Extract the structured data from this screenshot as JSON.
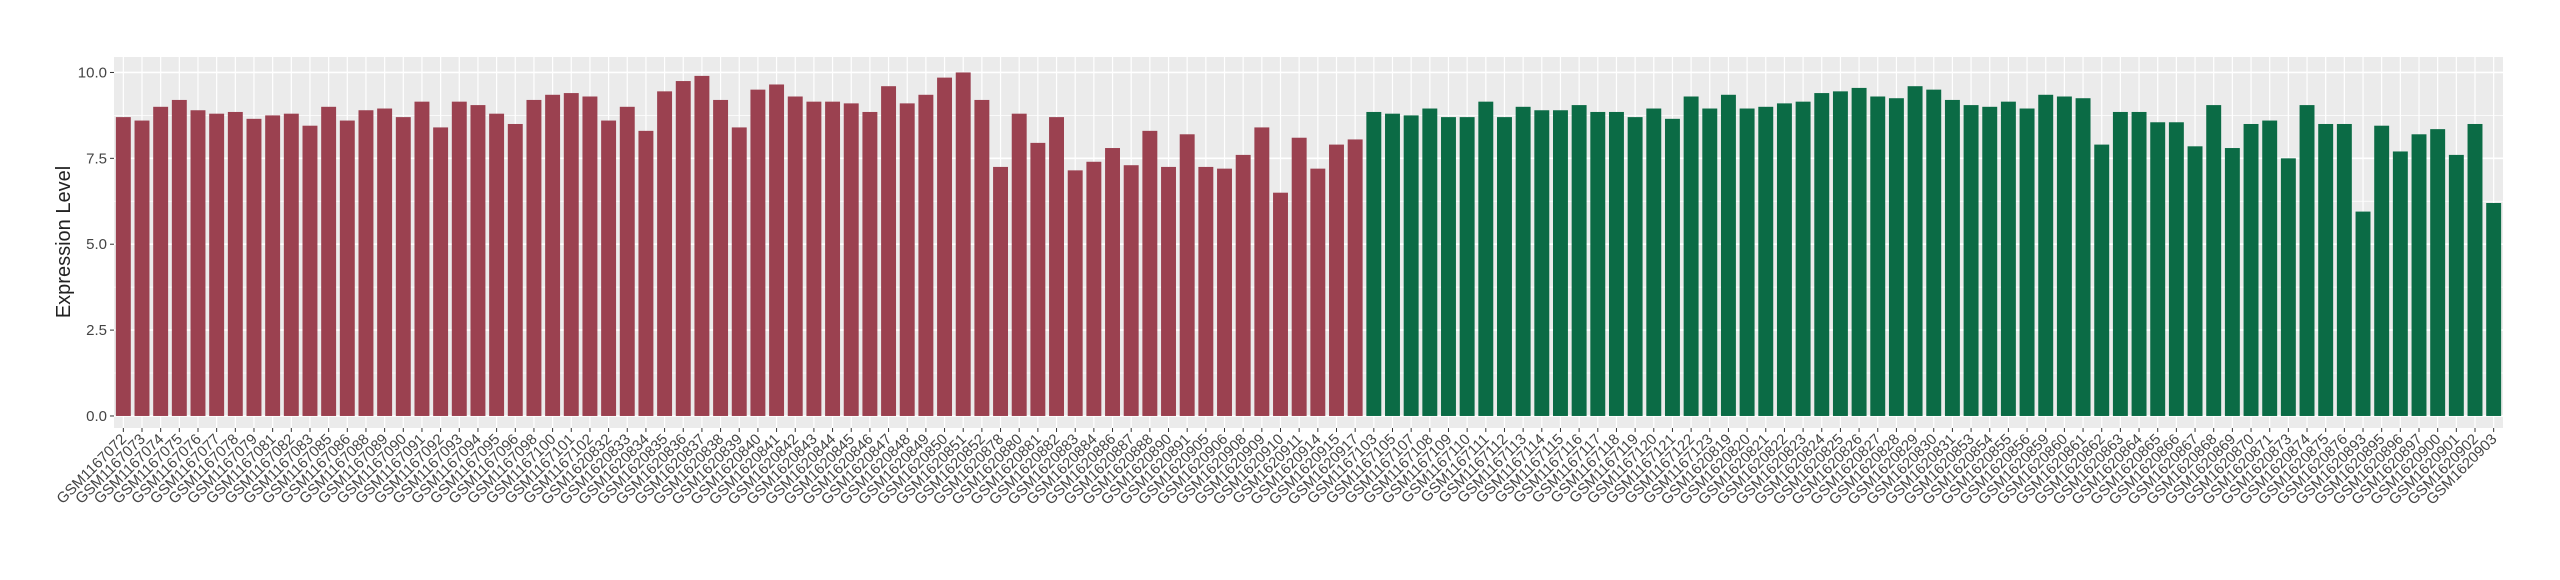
{
  "chart_data": {
    "type": "bar",
    "y_label": "Expression Level",
    "categories": [
      "GSM1167072",
      "GSM1167073",
      "GSM1167074",
      "GSM1167075",
      "GSM1167076",
      "GSM1167077",
      "GSM1167078",
      "GSM1167079",
      "GSM1167081",
      "GSM1167082",
      "GSM1167083",
      "GSM1167085",
      "GSM1167086",
      "GSM1167088",
      "GSM1167089",
      "GSM1167090",
      "GSM1167091",
      "GSM1167092",
      "GSM1167093",
      "GSM1167094",
      "GSM1167095",
      "GSM1167096",
      "GSM1167098",
      "GSM1167100",
      "GSM1167101",
      "GSM1167102",
      "GSM1620832",
      "GSM1620833",
      "GSM1620834",
      "GSM1620835",
      "GSM1620836",
      "GSM1620837",
      "GSM1620838",
      "GSM1620839",
      "GSM1620840",
      "GSM1620841",
      "GSM1620842",
      "GSM1620843",
      "GSM1620844",
      "GSM1620845",
      "GSM1620846",
      "GSM1620847",
      "GSM1620848",
      "GSM1620849",
      "GSM1620850",
      "GSM1620851",
      "GSM1620852",
      "GSM1620878",
      "GSM1620880",
      "GSM1620881",
      "GSM1620882",
      "GSM1620883",
      "GSM1620884",
      "GSM1620886",
      "GSM1620887",
      "GSM1620888",
      "GSM1620890",
      "GSM1620891",
      "GSM1620905",
      "GSM1620906",
      "GSM1620908",
      "GSM1620909",
      "GSM1620910",
      "GSM1620911",
      "GSM1620914",
      "GSM1620915",
      "GSM1620917",
      "GSM1167103",
      "GSM1167105",
      "GSM1167107",
      "GSM1167108",
      "GSM1167109",
      "GSM1167110",
      "GSM1167111",
      "GSM1167112",
      "GSM1167113",
      "GSM1167114",
      "GSM1167115",
      "GSM1167116",
      "GSM1167117",
      "GSM1167118",
      "GSM1167119",
      "GSM1167120",
      "GSM1167121",
      "GSM1167122",
      "GSM1167123",
      "GSM1620819",
      "GSM1620820",
      "GSM1620821",
      "GSM1620822",
      "GSM1620823",
      "GSM1620824",
      "GSM1620825",
      "GSM1620826",
      "GSM1620827",
      "GSM1620828",
      "GSM1620829",
      "GSM1620830",
      "GSM1620831",
      "GSM1620853",
      "GSM1620854",
      "GSM1620855",
      "GSM1620856",
      "GSM1620859",
      "GSM1620860",
      "GSM1620861",
      "GSM1620862",
      "GSM1620863",
      "GSM1620864",
      "GSM1620865",
      "GSM1620866",
      "GSM1620867",
      "GSM1620868",
      "GSM1620869",
      "GSM1620870",
      "GSM1620871",
      "GSM1620873",
      "GSM1620874",
      "GSM1620875",
      "GSM1620876",
      "GSM1620893",
      "GSM1620895",
      "GSM1620896",
      "GSM1620897",
      "GSM1620900",
      "GSM1620901",
      "GSM1620902",
      "GSM1620903"
    ],
    "values": [
      8.7,
      8.6,
      9.0,
      9.2,
      8.9,
      8.8,
      8.85,
      8.65,
      8.75,
      8.8,
      8.45,
      9.0,
      8.6,
      8.9,
      8.95,
      8.7,
      9.15,
      8.4,
      9.15,
      9.05,
      8.8,
      8.5,
      9.2,
      9.35,
      9.4,
      9.3,
      8.6,
      9.0,
      8.3,
      9.45,
      9.75,
      9.9,
      9.2,
      8.4,
      9.5,
      9.65,
      9.3,
      9.15,
      9.15,
      9.1,
      8.85,
      9.6,
      9.1,
      9.35,
      9.85,
      10.0,
      9.2,
      7.25,
      8.8,
      7.95,
      8.7,
      7.15,
      7.4,
      7.8,
      7.3,
      8.3,
      7.25,
      8.2,
      7.25,
      7.2,
      7.6,
      8.4,
      6.5,
      8.1,
      7.2,
      7.9,
      8.05,
      8.85,
      8.8,
      8.75,
      8.95,
      8.7,
      8.7,
      9.15,
      8.7,
      9.0,
      8.9,
      8.9,
      9.05,
      8.85,
      8.85,
      8.7,
      8.95,
      8.65,
      9.3,
      8.95,
      9.35,
      8.95,
      9.0,
      9.1,
      9.15,
      9.4,
      9.45,
      9.55,
      9.3,
      9.25,
      9.6,
      9.5,
      9.2,
      9.05,
      9.0,
      9.15,
      8.95,
      9.35,
      9.3,
      9.25,
      7.9,
      8.85,
      8.85,
      8.55,
      8.55,
      7.85,
      9.05,
      7.8,
      8.5,
      8.6,
      7.5,
      9.05,
      8.5,
      8.5,
      5.95,
      8.45,
      7.7,
      8.2,
      8.35,
      7.6,
      8.5,
      6.2
    ],
    "colors": [
      "#9b4150",
      "#9b4150",
      "#9b4150",
      "#9b4150",
      "#9b4150",
      "#9b4150",
      "#9b4150",
      "#9b4150",
      "#9b4150",
      "#9b4150",
      "#9b4150",
      "#9b4150",
      "#9b4150",
      "#9b4150",
      "#9b4150",
      "#9b4150",
      "#9b4150",
      "#9b4150",
      "#9b4150",
      "#9b4150",
      "#9b4150",
      "#9b4150",
      "#9b4150",
      "#9b4150",
      "#9b4150",
      "#9b4150",
      "#9b4150",
      "#9b4150",
      "#9b4150",
      "#9b4150",
      "#9b4150",
      "#9b4150",
      "#9b4150",
      "#9b4150",
      "#9b4150",
      "#9b4150",
      "#9b4150",
      "#9b4150",
      "#9b4150",
      "#9b4150",
      "#9b4150",
      "#9b4150",
      "#9b4150",
      "#9b4150",
      "#9b4150",
      "#9b4150",
      "#9b4150",
      "#9b4150",
      "#9b4150",
      "#9b4150",
      "#9b4150",
      "#9b4150",
      "#9b4150",
      "#9b4150",
      "#9b4150",
      "#9b4150",
      "#9b4150",
      "#9b4150",
      "#9b4150",
      "#9b4150",
      "#9b4150",
      "#9b4150",
      "#9b4150",
      "#9b4150",
      "#9b4150",
      "#9b4150",
      "#9b4150",
      "#0b6b45",
      "#0b6b45",
      "#0b6b45",
      "#0b6b45",
      "#0b6b45",
      "#0b6b45",
      "#0b6b45",
      "#0b6b45",
      "#0b6b45",
      "#0b6b45",
      "#0b6b45",
      "#0b6b45",
      "#0b6b45",
      "#0b6b45",
      "#0b6b45",
      "#0b6b45",
      "#0b6b45",
      "#0b6b45",
      "#0b6b45",
      "#0b6b45",
      "#0b6b45",
      "#0b6b45",
      "#0b6b45",
      "#0b6b45",
      "#0b6b45",
      "#0b6b45",
      "#0b6b45",
      "#0b6b45",
      "#0b6b45",
      "#0b6b45",
      "#0b6b45",
      "#0b6b45",
      "#0b6b45",
      "#0b6b45",
      "#0b6b45",
      "#0b6b45",
      "#0b6b45",
      "#0b6b45",
      "#0b6b45",
      "#0b6b45",
      "#0b6b45",
      "#0b6b45",
      "#0b6b45",
      "#0b6b45",
      "#0b6b45",
      "#0b6b45",
      "#0b6b45",
      "#0b6b45",
      "#0b6b45",
      "#0b6b45",
      "#0b6b45",
      "#0b6b45",
      "#0b6b45",
      "#0b6b45",
      "#0b6b45",
      "#0b6b45",
      "#0b6b45",
      "#0b6b45",
      "#0b6b45",
      "#0b6b45",
      "#0b6b45"
    ],
    "ylim": [
      -0.35,
      10.45
    ],
    "yticks": [
      {
        "value": 0,
        "label": "0.0"
      },
      {
        "value": 2.5,
        "label": "2.5"
      },
      {
        "value": 5,
        "label": "5.0"
      },
      {
        "value": 7.5,
        "label": "7.5"
      },
      {
        "value": 10,
        "label": "10.0"
      }
    ],
    "grid": true
  }
}
